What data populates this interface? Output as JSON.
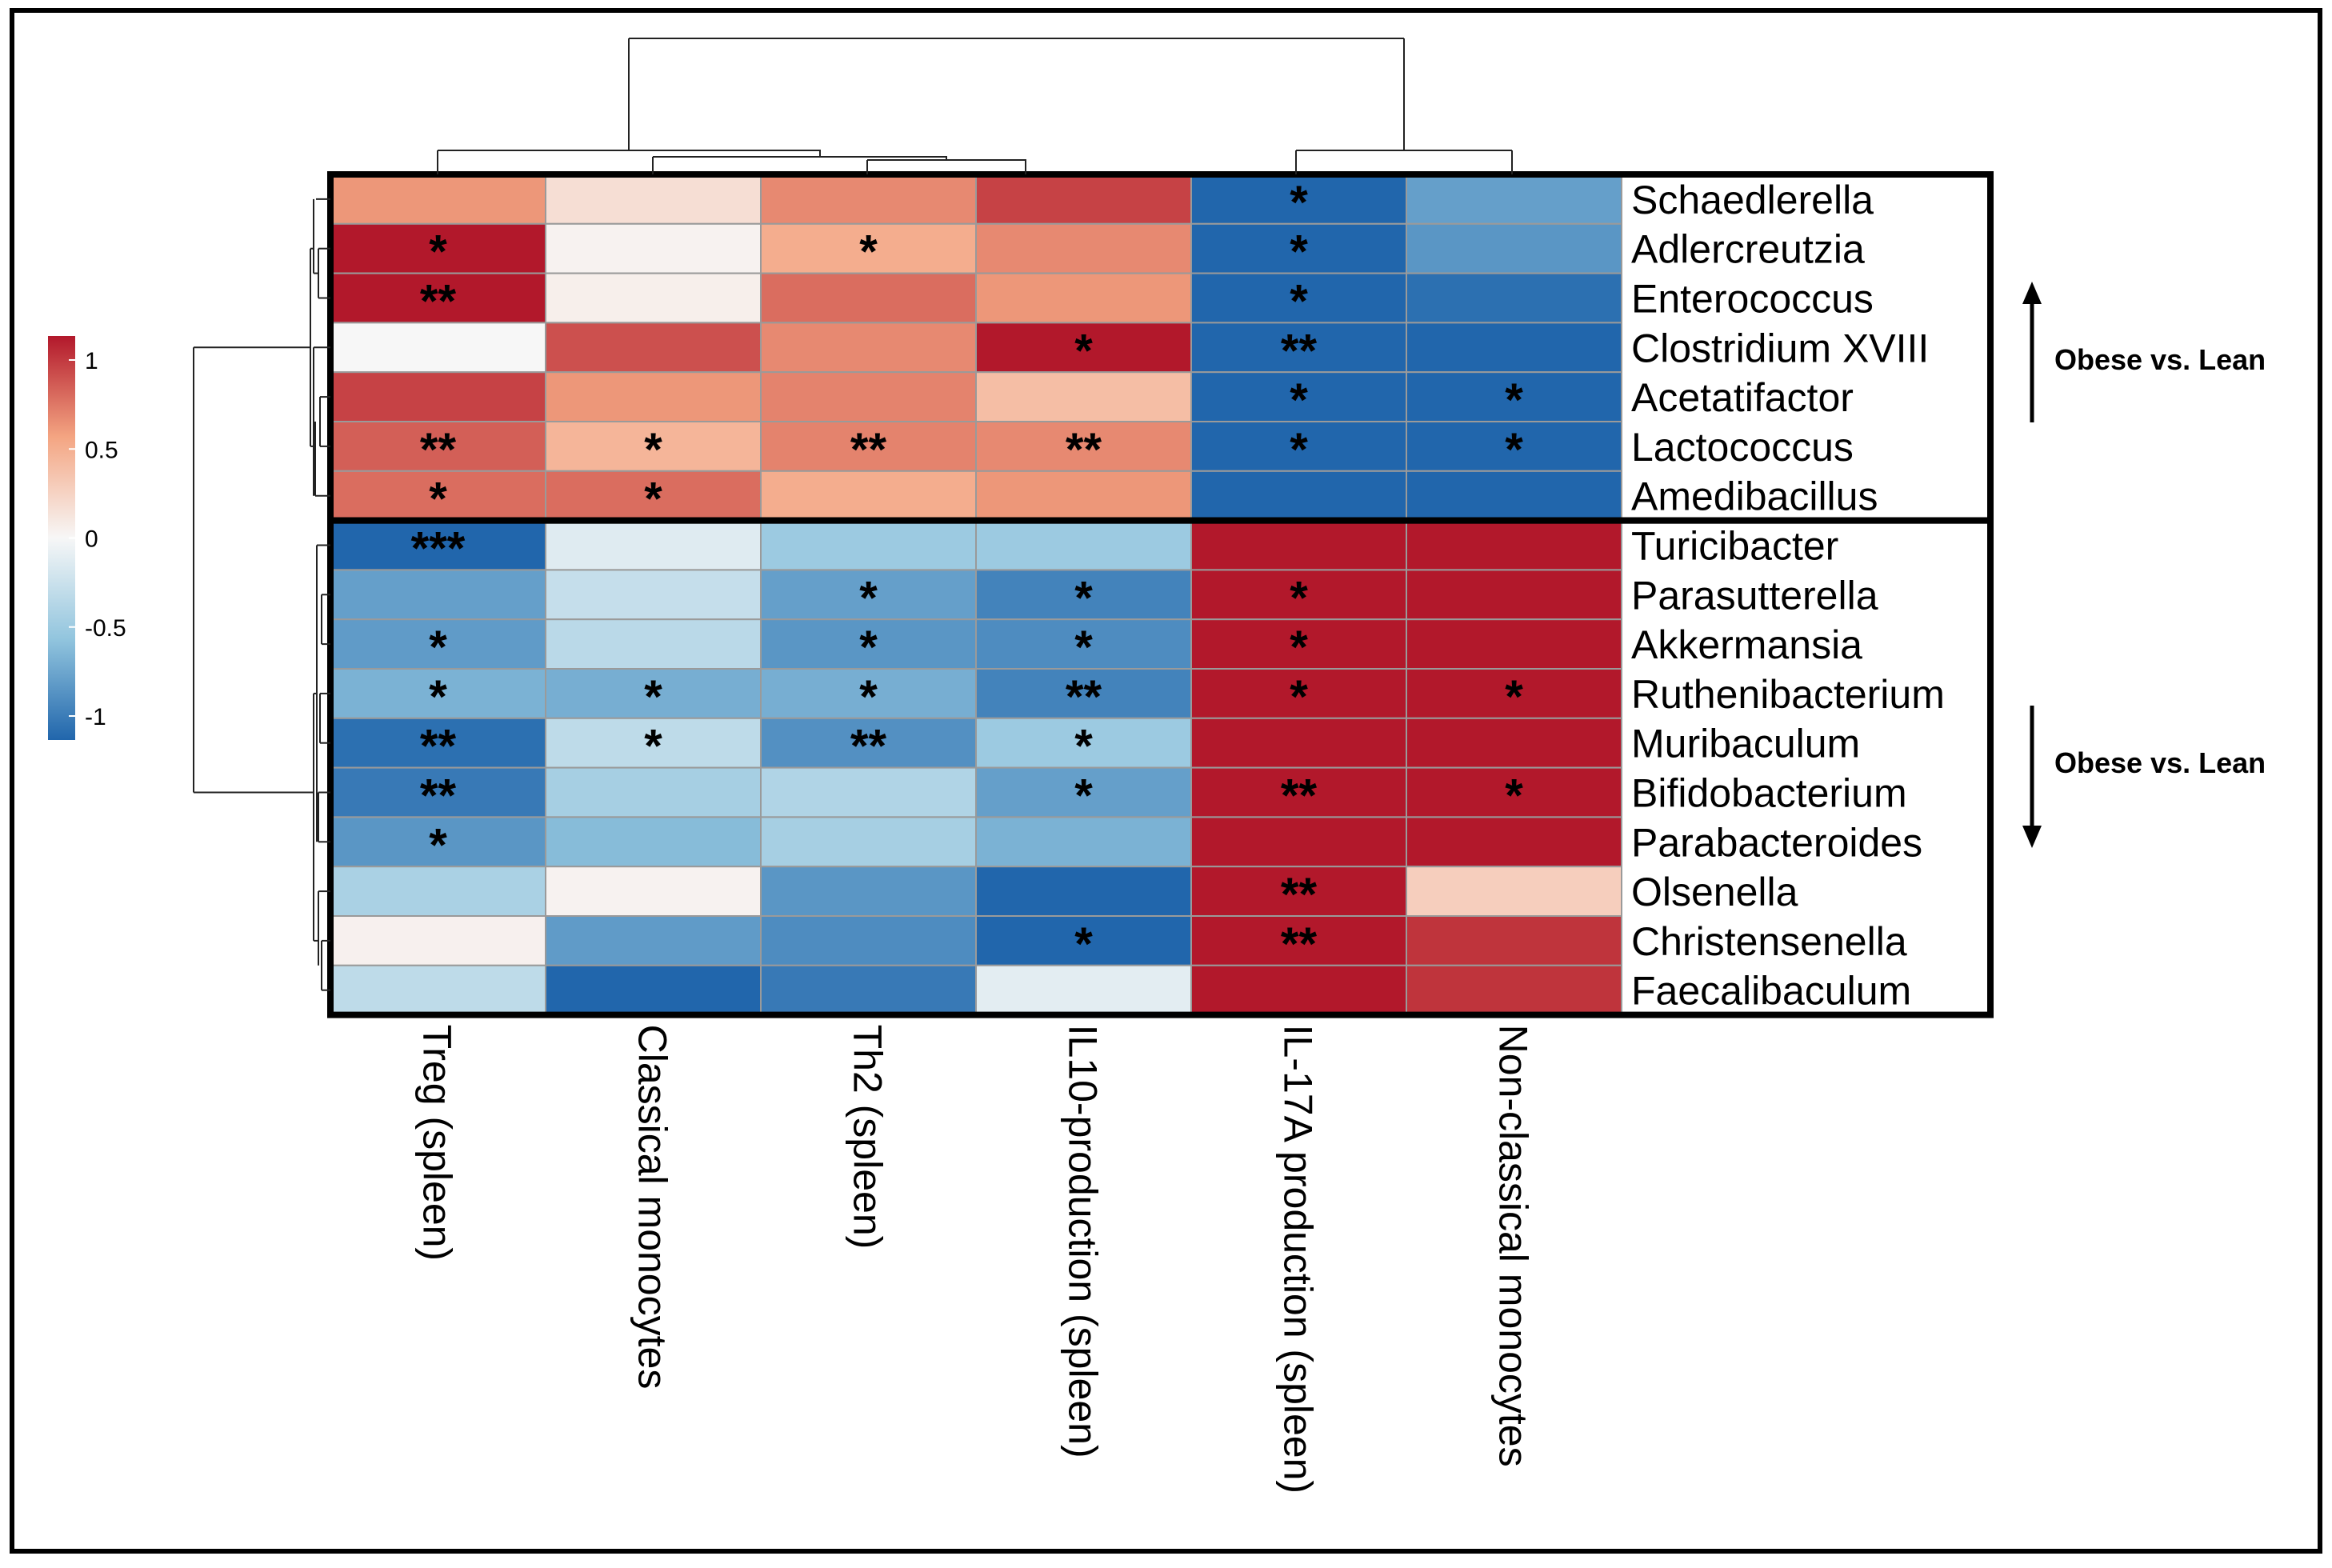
{
  "chart_data": {
    "type": "heatmap",
    "title": "",
    "columns": [
      "Treg (spleen)",
      "Classical monocytes",
      "Th2 (spleen)",
      "IL10-production (spleen)",
      "IL-17A production (spleen)",
      "Non-classical monocytes"
    ],
    "rows": [
      "Schaedlerella",
      "Adlercreutzia",
      "Enterococcus",
      "Clostridium XVIII",
      "Acetatifactor",
      "Lactococcus",
      "Amedibacillus",
      "Turicibacter",
      "Parasutterella",
      "Akkermansia",
      "Ruthenibacterium",
      "Muribaculum",
      "Bifidobacterium",
      "Parabacteroides",
      "Olsenella",
      "Christensenella",
      "Faecalibaculum"
    ],
    "values": [
      [
        0.55,
        0.15,
        0.6,
        0.85,
        -1.0,
        -0.7
      ],
      [
        1.0,
        0.03,
        0.45,
        0.6,
        -1.0,
        -0.75
      ],
      [
        1.0,
        0.05,
        0.7,
        0.55,
        -1.0,
        -0.95
      ],
      [
        0.0,
        0.8,
        0.6,
        1.0,
        -1.0,
        -1.0
      ],
      [
        0.85,
        0.55,
        0.62,
        0.35,
        -1.0,
        -1.0
      ],
      [
        0.75,
        0.4,
        0.62,
        0.6,
        -1.0,
        -1.0
      ],
      [
        0.7,
        0.7,
        0.45,
        0.55,
        -1.0,
        -1.0
      ],
      [
        -1.0,
        -0.12,
        -0.45,
        -0.45,
        1.0,
        1.0
      ],
      [
        -0.7,
        -0.25,
        -0.7,
        -0.85,
        1.0,
        1.0
      ],
      [
        -0.72,
        -0.3,
        -0.75,
        -0.8,
        1.0,
        1.0
      ],
      [
        -0.6,
        -0.62,
        -0.62,
        -0.85,
        1.0,
        1.0
      ],
      [
        -0.95,
        -0.28,
        -0.78,
        -0.45,
        1.0,
        1.0
      ],
      [
        -0.9,
        -0.4,
        -0.35,
        -0.7,
        1.0,
        1.0
      ],
      [
        -0.75,
        -0.55,
        -0.4,
        -0.6,
        1.0,
        1.0
      ],
      [
        -0.38,
        0.03,
        -0.75,
        -1.0,
        1.0,
        0.25
      ],
      [
        0.04,
        -0.72,
        -0.8,
        -1.0,
        1.0,
        0.9
      ],
      [
        -0.28,
        -1.0,
        -0.9,
        -0.1,
        1.0,
        0.9
      ]
    ],
    "significance": [
      [
        "",
        "",
        "",
        "",
        "*",
        ""
      ],
      [
        "*",
        "",
        "*",
        "",
        "*",
        ""
      ],
      [
        "**",
        "",
        "",
        "",
        "*",
        ""
      ],
      [
        "",
        "",
        "",
        "*",
        "**",
        ""
      ],
      [
        "",
        "",
        "",
        "",
        "*",
        "*"
      ],
      [
        "**",
        "*",
        "**",
        "**",
        "*",
        "*"
      ],
      [
        "*",
        "*",
        "",
        "",
        "",
        ""
      ],
      [
        "***",
        "",
        "",
        "",
        "",
        ""
      ],
      [
        "",
        "",
        "*",
        "*",
        "*",
        ""
      ],
      [
        "*",
        "",
        "*",
        "*",
        "*",
        ""
      ],
      [
        "*",
        "*",
        "*",
        "**",
        "*",
        "*"
      ],
      [
        "**",
        "*",
        "**",
        "*",
        "",
        ""
      ],
      [
        "**",
        "",
        "",
        "*",
        "**",
        "*"
      ],
      [
        "*",
        "",
        "",
        "",
        "",
        ""
      ],
      [
        "",
        "",
        "",
        "",
        "**",
        ""
      ],
      [
        "",
        "",
        "",
        "*",
        "**",
        ""
      ],
      [
        "",
        "",
        "",
        "",
        "",
        ""
      ]
    ],
    "groups": [
      {
        "label": "Obese vs. Lean",
        "direction": "up"
      },
      {
        "label": "Obese vs. Lean",
        "direction": "down"
      }
    ],
    "legend": {
      "range": [
        -1,
        1
      ],
      "ticks": [
        1,
        0.5,
        0,
        -0.5,
        -1
      ],
      "tick_labels": [
        "1",
        "0.5",
        "0",
        "-0.5",
        "-1"
      ]
    },
    "colors": {
      "low": "#2166ac",
      "mid": "#f7f7f7",
      "high": "#b2182b",
      "mid_low": "#92c5de",
      "mid_high": "#f4a582"
    }
  }
}
